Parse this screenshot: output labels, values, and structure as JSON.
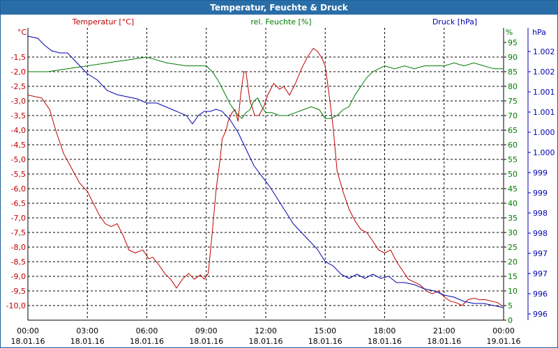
{
  "window": {
    "title": "Temperatur, Feuchte & Druck"
  },
  "colors": {
    "temperature": "#c00000",
    "humidity": "#007a00",
    "pressure": "#0000b0",
    "grid": "#000000",
    "titlebar": "#2a6ea8"
  },
  "chart_data": {
    "type": "line",
    "title": "Temperatur, Feuchte & Druck",
    "grid": true,
    "x_ticks": [
      {
        "time": "00:00",
        "date": "18.01.16"
      },
      {
        "time": "03:00",
        "date": "18.01.16"
      },
      {
        "time": "06:00",
        "date": "18.01.16"
      },
      {
        "time": "09:00",
        "date": "18.01.16"
      },
      {
        "time": "12:00",
        "date": "18.01.16"
      },
      {
        "time": "15:00",
        "date": "18.01.16"
      },
      {
        "time": "18:00",
        "date": "18.01.16"
      },
      {
        "time": "21:00",
        "date": "18.01.16"
      },
      {
        "time": "00:00",
        "date": "19.01.16"
      }
    ],
    "x_range_hours": [
      0,
      24
    ],
    "axes": {
      "temperature": {
        "label": "Temperatur [°C]",
        "unit": "°C",
        "range": [
          -10.5,
          -0.5
        ],
        "ticks": [
          "-1,5",
          "-2,0",
          "-2,5",
          "-3,0",
          "-3,5",
          "-4,0",
          "-4,5",
          "-5,0",
          "-5,5",
          "-6,0",
          "-6,5",
          "-7,0",
          "-7,5",
          "-8,0",
          "-8,5",
          "-9,0",
          "-9,5",
          "-10,0"
        ]
      },
      "humidity": {
        "label": "rel. Feuchte [%]",
        "unit": "%",
        "range": [
          0,
          100
        ],
        "ticks": [
          "95",
          "90",
          "85",
          "80",
          "75",
          "70",
          "65",
          "60",
          "55",
          "50",
          "45",
          "40",
          "35",
          "30",
          "25",
          "20",
          "15",
          "10",
          "5",
          "0"
        ]
      },
      "pressure": {
        "label": "Druck [hPa]",
        "unit": "hPa",
        "range": [
          995.6,
          1002.6
        ],
        "ticks": [
          "1.002",
          "1.002",
          "1.001",
          "1.001",
          "1.000",
          "1.000",
          "999",
          "999",
          "998",
          "998",
          "997",
          "997",
          "996",
          "996"
        ]
      }
    },
    "series": [
      {
        "name": "Temperatur [°C]",
        "axis": "temperature",
        "x": [
          0,
          0.7,
          1.1,
          1.4,
          1.8,
          2.2,
          2.6,
          3.0,
          3.3,
          3.6,
          3.9,
          4.2,
          4.5,
          4.8,
          5.1,
          5.4,
          5.8,
          6.1,
          6.3,
          6.6,
          6.9,
          7.2,
          7.5,
          7.8,
          8.1,
          8.4,
          8.7,
          8.9,
          9.1,
          9.3,
          9.5,
          9.7,
          9.8,
          10.0,
          10.1,
          10.3,
          10.45,
          10.6,
          10.75,
          10.9,
          11.0,
          11.2,
          11.45,
          11.65,
          11.9,
          12.1,
          12.4,
          12.7,
          12.9,
          13.2,
          13.5,
          13.8,
          14.1,
          14.4,
          14.6,
          14.8,
          15.0,
          15.2,
          15.4,
          15.6,
          15.9,
          16.2,
          16.5,
          16.8,
          17.1,
          17.4,
          17.7,
          18.0,
          18.3,
          18.6,
          18.9,
          19.2,
          19.5,
          19.8,
          20.1,
          20.4,
          20.7,
          21.0,
          21.3,
          21.6,
          21.9,
          22.2,
          22.5,
          22.8,
          23.1,
          23.4,
          23.7,
          23.9
        ],
        "values": [
          -2.8,
          -2.9,
          -3.3,
          -4.0,
          -4.8,
          -5.3,
          -5.8,
          -6.1,
          -6.5,
          -6.9,
          -7.2,
          -7.3,
          -7.2,
          -7.6,
          -8.1,
          -8.2,
          -8.1,
          -8.4,
          -8.35,
          -8.6,
          -8.9,
          -9.1,
          -9.4,
          -9.1,
          -8.9,
          -9.1,
          -8.95,
          -9.1,
          -8.9,
          -7.5,
          -6.0,
          -5.0,
          -4.3,
          -4.0,
          -3.7,
          -3.4,
          -3.3,
          -3.7,
          -2.7,
          -2.0,
          -2.0,
          -3.0,
          -3.5,
          -3.5,
          -3.2,
          -2.8,
          -2.4,
          -2.6,
          -2.5,
          -2.8,
          -2.4,
          -1.9,
          -1.5,
          -1.2,
          -1.3,
          -1.5,
          -1.8,
          -2.8,
          -3.9,
          -5.4,
          -6.1,
          -6.7,
          -7.1,
          -7.4,
          -7.5,
          -7.8,
          -8.1,
          -8.2,
          -8.1,
          -8.5,
          -8.8,
          -9.1,
          -9.2,
          -9.3,
          -9.5,
          -9.6,
          -9.5,
          -9.7,
          -9.85,
          -9.9,
          -10.0,
          -9.8,
          -9.75,
          -9.8,
          -9.8,
          -9.85,
          -9.9,
          -10.0
        ]
      },
      {
        "name": "rel. Feuchte [%]",
        "axis": "humidity",
        "x": [
          0,
          1.0,
          2.0,
          3.0,
          4.0,
          5.0,
          6.0,
          6.5,
          7.0,
          8.0,
          9.0,
          9.3,
          9.6,
          9.9,
          10.2,
          10.5,
          10.8,
          11.0,
          11.2,
          11.4,
          11.6,
          11.8,
          12.0,
          12.3,
          12.7,
          13.1,
          13.5,
          13.9,
          14.3,
          14.7,
          15.0,
          15.3,
          15.6,
          15.9,
          16.2,
          16.5,
          16.8,
          17.1,
          17.4,
          17.7,
          18.0,
          18.5,
          19.0,
          19.5,
          20.0,
          20.5,
          21.0,
          21.5,
          22.0,
          22.5,
          23.0,
          23.5,
          24.0
        ],
        "values": [
          85,
          85,
          86,
          87,
          88,
          89,
          90,
          89,
          88,
          87,
          87,
          85,
          82,
          78,
          74,
          71,
          69,
          71,
          72,
          75,
          76,
          73,
          71,
          71,
          70,
          70,
          71,
          72,
          73,
          72,
          69,
          69,
          70,
          72,
          73,
          77,
          80,
          83,
          85,
          86,
          87,
          86,
          87,
          86,
          87,
          87,
          87,
          88,
          87,
          88,
          87,
          86,
          86
        ]
      },
      {
        "name": "Druck [hPa]",
        "axis": "pressure",
        "x": [
          0,
          0.5,
          0.8,
          1.2,
          1.6,
          2.0,
          2.5,
          3.0,
          3.5,
          4.0,
          4.5,
          5.0,
          5.5,
          6.0,
          6.5,
          7.0,
          7.5,
          8.0,
          8.3,
          8.6,
          8.9,
          9.2,
          9.5,
          9.8,
          10.2,
          10.6,
          11.0,
          11.4,
          11.8,
          12.2,
          12.6,
          13.0,
          13.4,
          13.8,
          14.2,
          14.6,
          15.0,
          15.4,
          15.8,
          16.2,
          16.6,
          17.0,
          17.4,
          17.8,
          18.2,
          18.6,
          19.0,
          19.5,
          20.0,
          20.5,
          21.0,
          21.5,
          22.0,
          22.5,
          23.0,
          23.5,
          24.0
        ],
        "values": [
          1002.4,
          1002.35,
          1002.2,
          1002.05,
          1002.0,
          1002.0,
          1001.75,
          1001.5,
          1001.35,
          1001.1,
          1001.0,
          1000.95,
          1000.9,
          1000.8,
          1000.8,
          1000.7,
          1000.6,
          1000.5,
          1000.3,
          1000.5,
          1000.6,
          1000.6,
          1000.65,
          1000.6,
          1000.4,
          1000.1,
          999.7,
          999.3,
          999.05,
          998.8,
          998.5,
          998.2,
          997.9,
          997.7,
          997.5,
          997.3,
          997.0,
          996.9,
          996.7,
          996.6,
          996.7,
          996.6,
          996.7,
          996.6,
          996.65,
          996.5,
          996.5,
          996.45,
          996.35,
          996.3,
          996.2,
          996.15,
          996.05,
          996.0,
          996.0,
          995.95,
          995.9
        ]
      }
    ]
  }
}
